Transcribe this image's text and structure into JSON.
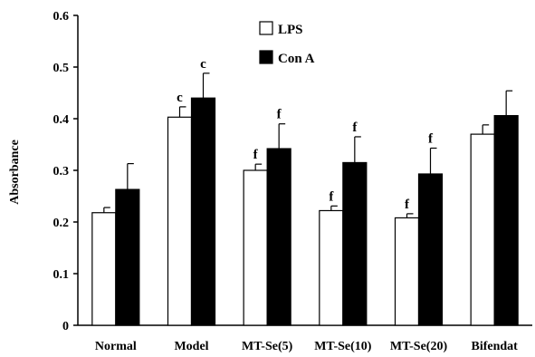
{
  "chart_data": {
    "type": "bar",
    "ylabel": "Absorbance",
    "xlabel": "",
    "ylim": [
      0,
      0.6
    ],
    "yticks": [
      "0",
      "0.1",
      "0.2",
      "0.3",
      "0.4",
      "0.5",
      "0.6"
    ],
    "categories": [
      "Normal",
      "Model",
      "MT-Se(5)",
      "MT-Se(10)",
      "MT-Se(20)",
      "Bifendat"
    ],
    "legend_position": "top-center",
    "grid": false,
    "series": [
      {
        "name": "LPS",
        "color": "#ffffff",
        "values": [
          0.218,
          0.403,
          0.3,
          0.222,
          0.208,
          0.37
        ],
        "errors": [
          0.01,
          0.02,
          0.012,
          0.009,
          0.008,
          0.018
        ],
        "sig": [
          "",
          "c",
          "f",
          "f",
          "f",
          ""
        ]
      },
      {
        "name": "Con A",
        "color": "#000000",
        "values": [
          0.263,
          0.44,
          0.342,
          0.315,
          0.293,
          0.406
        ],
        "errors": [
          0.05,
          0.048,
          0.048,
          0.05,
          0.05,
          0.048
        ],
        "sig": [
          "",
          "c",
          "f",
          "f",
          "f",
          ""
        ]
      }
    ]
  }
}
